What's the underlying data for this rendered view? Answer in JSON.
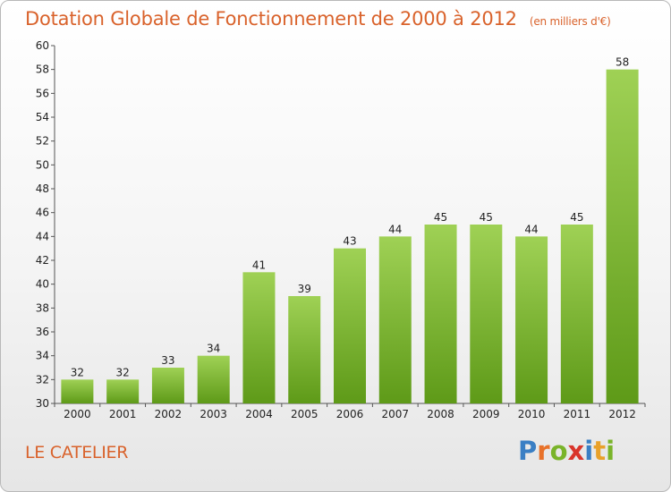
{
  "header": {
    "title": "Dotation Globale de Fonctionnement de 2000 à 2012",
    "subtitle": "(en milliers d'€)"
  },
  "commune": "LE CATELIER",
  "logo": {
    "letters": [
      {
        "ch": "P",
        "color": "#3a7fc4"
      },
      {
        "ch": "r",
        "color": "#e8722a"
      },
      {
        "ch": "o",
        "color": "#7ab42a"
      },
      {
        "ch": "x",
        "color": "#d9352b"
      },
      {
        "ch": "i",
        "color": "#3a7fc4"
      },
      {
        "ch": "t",
        "color": "#e8a12a"
      },
      {
        "ch": "i",
        "color": "#7ab42a"
      }
    ]
  },
  "chart_data": {
    "type": "bar",
    "categories": [
      "2000",
      "2001",
      "2002",
      "2003",
      "2004",
      "2005",
      "2006",
      "2007",
      "2008",
      "2009",
      "2010",
      "2011",
      "2012"
    ],
    "values": [
      32,
      32,
      33,
      34,
      41,
      39,
      43,
      44,
      45,
      45,
      44,
      45,
      58
    ],
    "ylim": [
      30,
      60
    ],
    "yticks": [
      30,
      32,
      34,
      36,
      38,
      40,
      42,
      44,
      46,
      48,
      50,
      52,
      54,
      56,
      58,
      60
    ],
    "bar_color_top": "#9fd155",
    "bar_color_bottom": "#5e9a18",
    "grid": false
  }
}
